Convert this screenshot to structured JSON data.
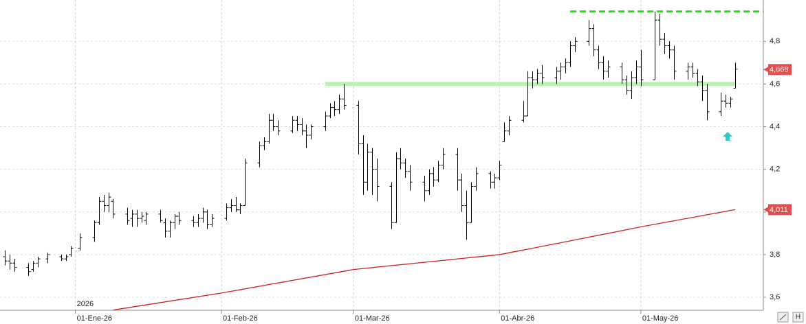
{
  "chart_data": {
    "type": "ohlc",
    "xlim": [
      "2025-12-16",
      "2026-05-27"
    ],
    "ylim": [
      3.539,
      4.994
    ],
    "yticks": [
      {
        "value": 3.6,
        "label": "3,6"
      },
      {
        "value": 3.8,
        "label": "3,8"
      },
      {
        "value": 4.0,
        "label": "4,0"
      },
      {
        "value": 4.2,
        "label": "4,2"
      },
      {
        "value": 4.4,
        "label": "4,4"
      },
      {
        "value": 4.6,
        "label": "4,6"
      },
      {
        "value": 4.8,
        "label": "4,8"
      }
    ],
    "xticks": [
      {
        "value": "2026-01-01",
        "label": "01-Ene-26"
      },
      {
        "value": "2026-02-01",
        "label": "01-Feb-26"
      },
      {
        "value": "2026-03-01",
        "label": "01-Mar-26"
      },
      {
        "value": "2026-04-01",
        "label": "01-Abr-26"
      },
      {
        "value": "2026-05-01",
        "label": "01-May-26"
      }
    ],
    "year_label": "2026",
    "grid": true,
    "color": "#000000",
    "x": [
      "2025-12-17",
      "2025-12-18",
      "2025-12-19",
      "2025-12-22",
      "2025-12-23",
      "2025-12-24",
      "2025-12-26",
      "2025-12-29",
      "2025-12-30",
      "2025-12-31",
      "2026-01-02",
      "2026-01-05",
      "2026-01-06",
      "2026-01-07",
      "2026-01-08",
      "2026-01-09",
      "2026-01-12",
      "2026-01-13",
      "2026-01-14",
      "2026-01-15",
      "2026-01-16",
      "2026-01-19",
      "2026-01-20",
      "2026-01-21",
      "2026-01-22",
      "2026-01-23",
      "2026-01-26",
      "2026-01-27",
      "2026-01-28",
      "2026-01-29",
      "2026-01-30",
      "2026-02-02",
      "2026-02-03",
      "2026-02-04",
      "2026-02-05",
      "2026-02-06",
      "2026-02-09",
      "2026-02-10",
      "2026-02-11",
      "2026-02-12",
      "2026-02-13",
      "2026-02-16",
      "2026-02-17",
      "2026-02-18",
      "2026-02-19",
      "2026-02-20",
      "2026-02-23",
      "2026-02-24",
      "2026-02-25",
      "2026-02-26",
      "2026-02-27",
      "2026-03-02",
      "2026-03-03",
      "2026-03-04",
      "2026-03-05",
      "2026-03-06",
      "2026-03-09",
      "2026-03-10",
      "2026-03-11",
      "2026-03-12",
      "2026-03-13",
      "2026-03-16",
      "2026-03-17",
      "2026-03-18",
      "2026-03-19",
      "2026-03-20",
      "2026-03-23",
      "2026-03-24",
      "2026-03-25",
      "2026-03-26",
      "2026-03-27",
      "2026-03-30",
      "2026-03-31",
      "2026-04-01",
      "2026-04-02",
      "2026-04-03",
      "2026-04-06",
      "2026-04-07",
      "2026-04-08",
      "2026-04-09",
      "2026-04-10",
      "2026-04-13",
      "2026-04-14",
      "2026-04-15",
      "2026-04-16",
      "2026-04-17",
      "2026-04-20",
      "2026-04-21",
      "2026-04-22",
      "2026-04-23",
      "2026-04-24",
      "2026-04-27",
      "2026-04-28",
      "2026-04-29",
      "2026-04-30",
      "2026-05-01",
      "2026-05-04",
      "2026-05-05",
      "2026-05-06",
      "2026-05-07",
      "2026-05-08",
      "2026-05-11",
      "2026-05-12",
      "2026-05-13",
      "2026-05-14",
      "2026-05-15",
      "2026-05-18",
      "2026-05-19",
      "2026-05-20",
      "2026-05-21"
    ],
    "ohlc": [
      [
        3.79,
        3.82,
        3.75,
        3.77
      ],
      [
        3.77,
        3.8,
        3.73,
        3.76
      ],
      [
        3.76,
        3.78,
        3.72,
        3.74
      ],
      [
        3.74,
        3.76,
        3.7,
        3.72
      ],
      [
        3.73,
        3.77,
        3.72,
        3.76
      ],
      [
        3.76,
        3.79,
        3.74,
        3.78
      ],
      [
        3.78,
        3.81,
        3.76,
        3.8
      ],
      [
        3.79,
        3.8,
        3.77,
        3.78
      ],
      [
        3.78,
        3.8,
        3.77,
        3.79
      ],
      [
        3.8,
        3.84,
        3.79,
        3.83
      ],
      [
        3.83,
        3.9,
        3.82,
        3.88
      ],
      [
        3.88,
        3.96,
        3.86,
        3.95
      ],
      [
        3.95,
        4.07,
        3.94,
        4.05
      ],
      [
        4.05,
        4.08,
        4.0,
        4.03
      ],
      [
        4.03,
        4.09,
        4.0,
        4.07
      ],
      [
        4.05,
        4.06,
        3.97,
        3.99
      ],
      [
        3.99,
        4.02,
        3.94,
        3.96
      ],
      [
        3.97,
        4.01,
        3.93,
        3.99
      ],
      [
        3.99,
        4.01,
        3.93,
        3.97
      ],
      [
        3.97,
        4.0,
        3.95,
        3.98
      ],
      [
        3.96,
        4.0,
        3.94,
        3.99
      ],
      [
        3.99,
        4.01,
        3.95,
        3.96
      ],
      [
        3.95,
        3.97,
        3.88,
        3.91
      ],
      [
        3.91,
        3.96,
        3.88,
        3.95
      ],
      [
        3.95,
        3.99,
        3.92,
        3.98
      ],
      [
        3.98,
        4.0,
        3.94,
        3.96
      ],
      [
        3.96,
        3.98,
        3.93,
        3.95
      ],
      [
        3.95,
        3.99,
        3.93,
        3.97
      ],
      [
        3.97,
        4.02,
        3.95,
        4.0
      ],
      [
        4.0,
        4.01,
        3.92,
        3.94
      ],
      [
        3.94,
        3.99,
        3.93,
        3.97
      ],
      [
        3.97,
        4.04,
        3.96,
        4.02
      ],
      [
        4.02,
        4.06,
        4.0,
        4.03
      ],
      [
        4.03,
        4.07,
        4.0,
        4.01
      ],
      [
        4.01,
        4.04,
        3.99,
        4.03
      ],
      [
        4.03,
        4.25,
        4.03,
        4.23
      ],
      [
        4.23,
        4.33,
        4.21,
        4.31
      ],
      [
        4.31,
        4.35,
        4.29,
        4.33
      ],
      [
        4.33,
        4.46,
        4.32,
        4.43
      ],
      [
        4.43,
        4.46,
        4.38,
        4.4
      ],
      [
        4.4,
        4.43,
        4.36,
        4.38
      ],
      [
        4.38,
        4.45,
        4.37,
        4.43
      ],
      [
        4.43,
        4.45,
        4.38,
        4.41
      ],
      [
        4.41,
        4.44,
        4.36,
        4.38
      ],
      [
        4.38,
        4.41,
        4.3,
        4.36
      ],
      [
        4.36,
        4.41,
        4.34,
        4.4
      ],
      [
        4.4,
        4.47,
        4.38,
        4.45
      ],
      [
        4.45,
        4.51,
        4.44,
        4.49
      ],
      [
        4.49,
        4.52,
        4.45,
        4.48
      ],
      [
        4.48,
        4.55,
        4.46,
        4.53
      ],
      [
        4.53,
        4.6,
        4.48,
        4.5
      ],
      [
        4.5,
        4.52,
        4.27,
        4.32
      ],
      [
        4.32,
        4.36,
        4.08,
        4.14
      ],
      [
        4.14,
        4.32,
        4.1,
        4.28
      ],
      [
        4.28,
        4.3,
        4.08,
        4.2
      ],
      [
        4.2,
        4.25,
        4.05,
        4.12
      ],
      [
        4.12,
        4.14,
        3.92,
        3.95
      ],
      [
        3.95,
        4.28,
        3.95,
        4.25
      ],
      [
        4.25,
        4.3,
        4.2,
        4.23
      ],
      [
        4.23,
        4.25,
        4.16,
        4.19
      ],
      [
        4.19,
        4.22,
        4.1,
        4.14
      ],
      [
        4.14,
        4.17,
        4.05,
        4.1
      ],
      [
        4.1,
        4.2,
        4.08,
        4.18
      ],
      [
        4.18,
        4.21,
        4.12,
        4.15
      ],
      [
        4.15,
        4.24,
        4.14,
        4.22
      ],
      [
        4.22,
        4.3,
        4.2,
        4.27
      ],
      [
        4.27,
        4.3,
        4.1,
        4.15
      ],
      [
        4.15,
        4.18,
        4.0,
        4.03
      ],
      [
        4.03,
        4.1,
        3.87,
        3.95
      ],
      [
        3.95,
        4.14,
        3.95,
        4.12
      ],
      [
        4.12,
        4.21,
        4.1,
        4.18
      ],
      [
        4.18,
        4.19,
        4.11,
        4.14
      ],
      [
        4.14,
        4.18,
        4.11,
        4.16
      ],
      [
        4.16,
        4.24,
        4.15,
        4.22
      ],
      [
        4.33,
        4.42,
        4.33,
        4.38
      ],
      [
        4.38,
        4.45,
        4.36,
        4.43
      ],
      [
        4.43,
        4.52,
        4.42,
        4.45
      ],
      [
        4.45,
        4.66,
        4.45,
        4.63
      ],
      [
        4.63,
        4.66,
        4.58,
        4.62
      ],
      [
        4.62,
        4.67,
        4.6,
        4.65
      ],
      [
        4.65,
        4.69,
        4.6,
        4.63
      ],
      [
        4.63,
        4.68,
        4.6,
        4.66
      ],
      [
        4.66,
        4.7,
        4.62,
        4.68
      ],
      [
        4.68,
        4.72,
        4.65,
        4.7
      ],
      [
        4.7,
        4.8,
        4.68,
        4.78
      ],
      [
        4.78,
        4.82,
        4.75,
        4.8
      ],
      [
        4.8,
        4.9,
        4.78,
        4.86
      ],
      [
        4.86,
        4.88,
        4.73,
        4.76
      ],
      [
        4.76,
        4.78,
        4.67,
        4.7
      ],
      [
        4.7,
        4.73,
        4.62,
        4.66
      ],
      [
        4.66,
        4.71,
        4.63,
        4.68
      ],
      [
        4.68,
        4.7,
        4.6,
        4.62
      ],
      [
        4.62,
        4.64,
        4.55,
        4.57
      ],
      [
        4.57,
        4.66,
        4.53,
        4.63
      ],
      [
        4.63,
        4.71,
        4.6,
        4.68
      ],
      [
        4.68,
        4.76,
        4.59,
        4.62
      ],
      [
        4.62,
        4.94,
        4.62,
        4.9
      ],
      [
        4.9,
        4.93,
        4.78,
        4.81
      ],
      [
        4.81,
        4.84,
        4.74,
        4.78
      ],
      [
        4.78,
        4.8,
        4.72,
        4.76
      ],
      [
        4.76,
        4.78,
        4.62,
        4.66
      ],
      [
        4.66,
        4.7,
        4.62,
        4.68
      ],
      [
        4.68,
        4.7,
        4.63,
        4.65
      ],
      [
        4.65,
        4.67,
        4.59,
        4.61
      ],
      [
        4.61,
        4.64,
        4.52,
        4.57
      ],
      [
        4.57,
        4.6,
        4.43,
        4.47
      ],
      [
        4.47,
        4.56,
        4.45,
        4.52
      ],
      [
        4.52,
        4.55,
        4.49,
        4.51
      ],
      [
        4.51,
        4.54,
        4.49,
        4.53
      ],
      [
        4.58,
        4.7,
        4.58,
        4.67
      ]
    ],
    "moving_average": {
      "color": "#cc1f1f",
      "x": [
        "2026-01-09",
        "2026-02-01",
        "2026-03-01",
        "2026-04-01",
        "2026-04-15",
        "2026-05-01",
        "2026-05-21"
      ],
      "values": [
        3.54,
        3.62,
        3.73,
        3.8,
        3.86,
        3.93,
        4.011
      ]
    },
    "hlines": [
      {
        "value": 4.6,
        "from": "2026-02-23",
        "to": "2026-05-21",
        "color": "#b9f3b0",
        "style": "solid"
      },
      {
        "value": 4.94,
        "from": "2026-04-16",
        "to": "2026-05-27",
        "color": "#22dd11",
        "style": "dashed"
      }
    ],
    "price_labels": [
      {
        "value": 4.668,
        "label": "4,668",
        "color": "#e05050"
      },
      {
        "value": 4.011,
        "label": "4,011",
        "color": "#e05050"
      }
    ]
  }
}
